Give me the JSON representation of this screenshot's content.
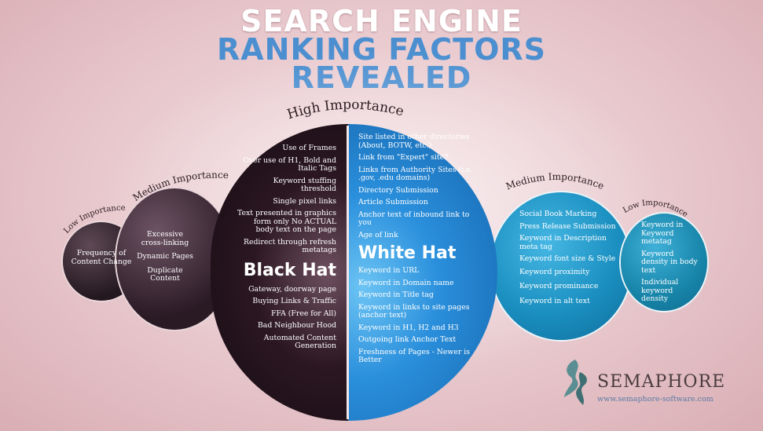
{
  "title": {
    "line1": "SEARCH ENGINE",
    "line2": "RANKING FACTORS",
    "line3": "REVEALED"
  },
  "labels": {
    "high": "High Importance",
    "medium_left": "Medium Importance",
    "low_left": "Low Importance",
    "medium_right": "Medium Importance",
    "low_right": "Low Importance"
  },
  "low_left": {
    "items": [
      "Frequency of Content Change"
    ]
  },
  "medium_left": {
    "items": [
      "Excessive cross-linking",
      "Dynamic Pages",
      "Duplicate Content"
    ]
  },
  "black_hat": {
    "heading": "Black Hat",
    "items_top": [
      "Use of Frames",
      "Over use of H1, Bold and Italic Tags",
      "Keyword stuffing threshold",
      "Single pixel links",
      "Text presented in graphics form only No ACTUAL body text on the page",
      "Redirect through refresh metatags"
    ],
    "items_bottom": [
      "Gateway, doorway page",
      "Buying Links & Traffic",
      "FFA (Free for All)",
      "Bad Neighbour Hood",
      "Automated Content Generation"
    ]
  },
  "white_hat": {
    "heading": "White Hat",
    "items_top": [
      "Site listed in other directories (About, BOTW, etc.)",
      "Link from \"Expert\" site?",
      "Links from Authority Sites (i.e. .gov, .edu domains)",
      "Directory Submission",
      "Article Submission",
      "Anchor text of inbound link to you",
      "Age of link"
    ],
    "items_bottom": [
      "Keyword in URL",
      "Keyword in Domain name",
      "Keyword in Title tag",
      "Keyword in links to site pages (anchor text)",
      "Keyword in H1, H2 and H3",
      "Outgoing link  Anchor Text",
      "Freshness of Pages - Newer is Better"
    ]
  },
  "medium_right": {
    "items": [
      "Social Book Marking",
      "Press Release Submission",
      "Keyword in Description meta tag",
      "Keyword font size & Style",
      "Keyword proximity",
      "Keyword prominance",
      "Keyword in alt text"
    ]
  },
  "low_right": {
    "items": [
      "Keyword in Keyword metatag",
      "Keyword density in body text",
      "Individual keyword density"
    ]
  },
  "brand": {
    "name": "SEMAPHORE",
    "url": "www.semaphore-software.com"
  },
  "colors": {
    "black_hat": "#1a0e14",
    "white_hat": "#1f7fd0",
    "medium_right": "#1a8fc0",
    "low_right": "#1784a8",
    "title_blue": "#4b8fd0"
  }
}
